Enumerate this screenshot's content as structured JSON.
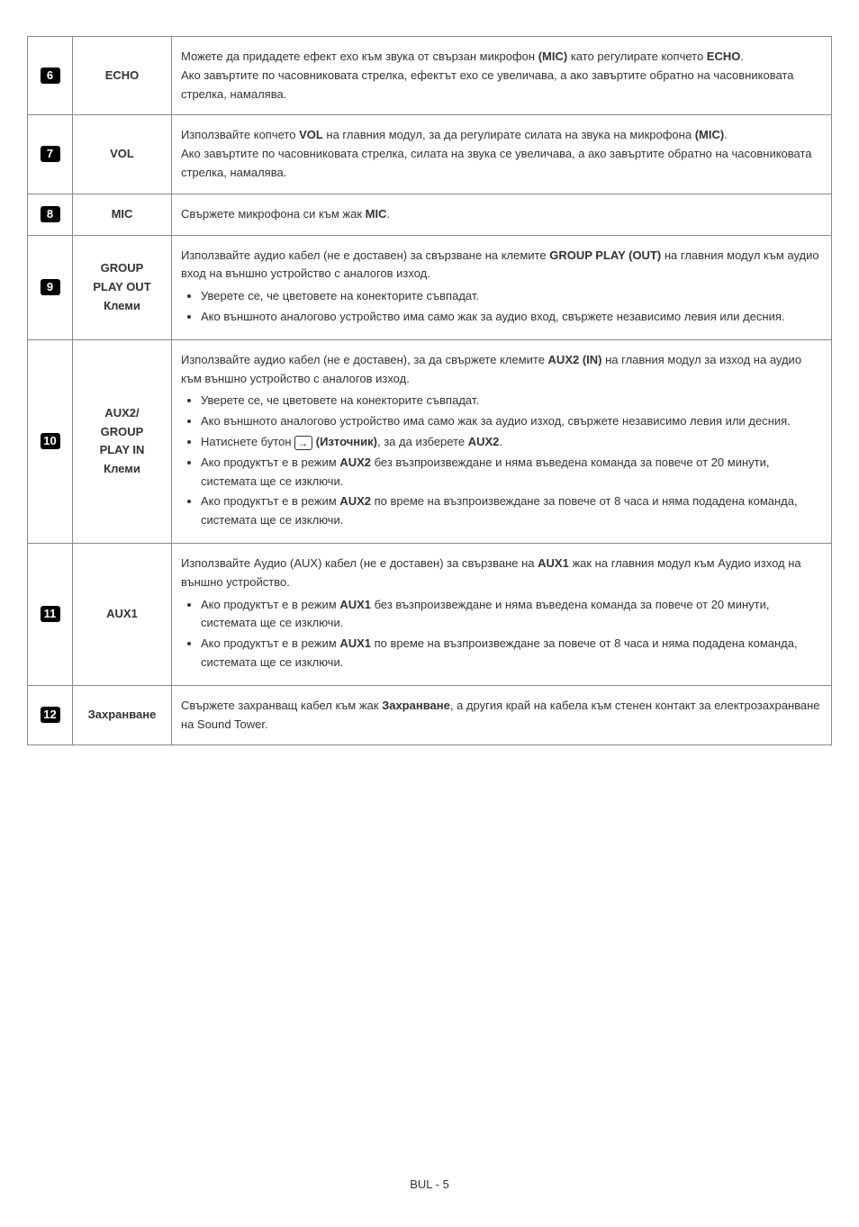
{
  "rows": [
    {
      "num": "6",
      "label": "ECHO",
      "desc_html": "Можете да придадете ефект ехо към звука от свързан микрофон <span class='b'>(MIC)</span> като регулирате копчето <span class='b'>ECHO</span>.<br>Ако завъртите по часовниковата стрелка, ефектът ехо се увеличава, а ако завъртите обратно на часовниковата стрелка, намалява."
    },
    {
      "num": "7",
      "label": "VOL",
      "desc_html": "Използвайте копчето <span class='b'>VOL</span> на главния модул, за да регулирате силата на звука на микрофона <span class='b'>(MIC)</span>.<br>Ако завъртите по часовниковата стрелка, силата на звука се увеличава, а ако завъртите обратно на часовниковата стрелка, намалява."
    },
    {
      "num": "8",
      "label": "MIC",
      "desc_html": "Свържете микрофона си към жак <span class='b'>MIC</span>."
    },
    {
      "num": "9",
      "label": "GROUP<br>PLAY OUT<br>Клеми",
      "desc_html": "Използвайте аудио кабел (не е доставен) за свързване на клемите <span class='b'>GROUP PLAY (OUT)</span> на главния модул към аудио вход на външно устройство с аналогов изход.<ul><li>Уверете се, че цветовете на конекторите съвпадат.</li><li>Ако външното аналогово устройство има само жак за аудио вход, свържете независимо левия или десния.</li></ul>"
    },
    {
      "num": "10",
      "label": "AUX2/<br>GROUP<br>PLAY IN<br>Клеми",
      "desc_html": "Използвайте аудио кабел (не е доставен), за да свържете клемите <span class='b'>AUX2 (IN)</span> на главния модул за изход на аудио към външно устройство с аналогов изход.<ul><li>Уверете се, че цветовете на конекторите съвпадат.</li><li>Ако външното аналогово устройство има само жак за аудио изход, свържете независимо левия или десния.</li><li>Натиснете бутон <span class='source-icon'>→</span> <span class='b'>(Източник)</span>, за да изберете <span class='b'>AUX2</span>.</li><li>Ако продуктът е в режим <span class='b'>AUX2</span> без възпроизвеждане и няма въведена команда за повече от 20 минути, системата ще се изключи.</li><li>Ако продуктът е в режим <span class='b'>AUX2</span> по време на възпроизвеждане за повече от 8 часа и няма подадена команда, системата ще се изключи.</li></ul>"
    },
    {
      "num": "11",
      "label": "AUX1",
      "desc_html": "Използвайте Аудио (AUX) кабел (не е доставен) за свързване на <span class='b'>AUX1</span> жак на главния модул към Аудио изход на външно устройство.<ul><li>Ако продуктът е в режим <span class='b'>AUX1</span> без възпроизвеждане и няма въведена команда за повече от 20 минути, системата ще се изключи.</li><li>Ако продуктът е в режим <span class='b'>AUX1</span> по време на възпроизвеждане за повече от 8 часа и няма подадена команда, системата ще се изключи.</li></ul>"
    },
    {
      "num": "12",
      "label": "Захранване",
      "desc_html": "Свържете захранващ кабел към жак <span class='b'>Захранване</span>, а другия край на кабела към стенен контакт за електрозахранване на Sound Tower."
    }
  ],
  "footer": "BUL - 5"
}
